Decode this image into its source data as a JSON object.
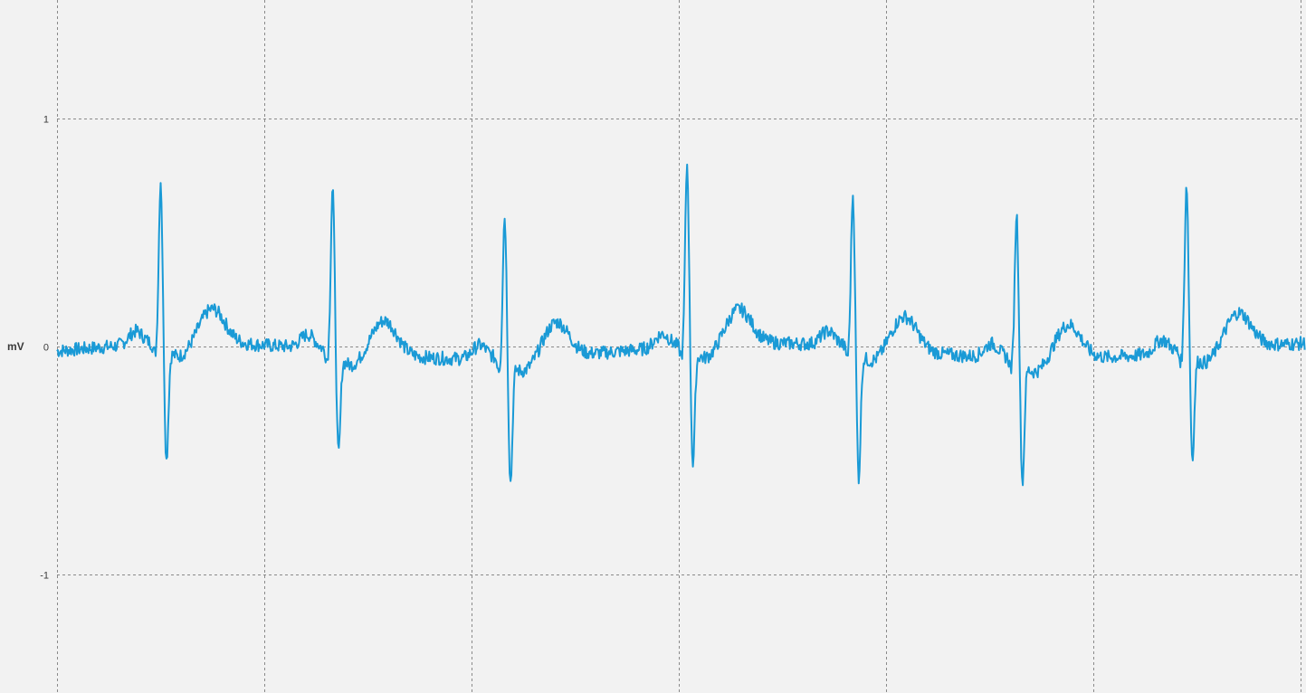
{
  "chart_data": {
    "type": "line",
    "title": "",
    "xlabel": "",
    "ylabel": "mV",
    "ylim": [
      -1.5,
      1.52
    ],
    "xlim": [
      0,
      6.1
    ],
    "y_ticks": [
      {
        "value": 1,
        "label": "1"
      },
      {
        "value": 0,
        "label": "0"
      },
      {
        "value": -1,
        "label": "-1"
      }
    ],
    "x_gridlines": [
      0,
      1,
      2,
      3,
      4,
      5,
      6
    ],
    "grid": true,
    "colors": {
      "line": "#1a9ad6",
      "grid": "#8a8a8a",
      "background": "#f2f2f2"
    },
    "beats": [
      {
        "r_time": 0.5,
        "r_amp": 0.73,
        "s_amp": -0.49
      },
      {
        "r_time": 1.33,
        "r_amp": 0.73,
        "s_amp": -0.43
      },
      {
        "r_time": 2.16,
        "r_amp": 0.64,
        "s_amp": -0.52
      },
      {
        "r_time": 3.04,
        "r_amp": 0.81,
        "s_amp": -0.5
      },
      {
        "r_time": 3.84,
        "r_amp": 0.68,
        "s_amp": -0.55
      },
      {
        "r_time": 4.63,
        "r_amp": 0.65,
        "s_amp": -0.52
      },
      {
        "r_time": 5.45,
        "r_amp": 0.75,
        "s_amp": -0.45
      }
    ]
  }
}
